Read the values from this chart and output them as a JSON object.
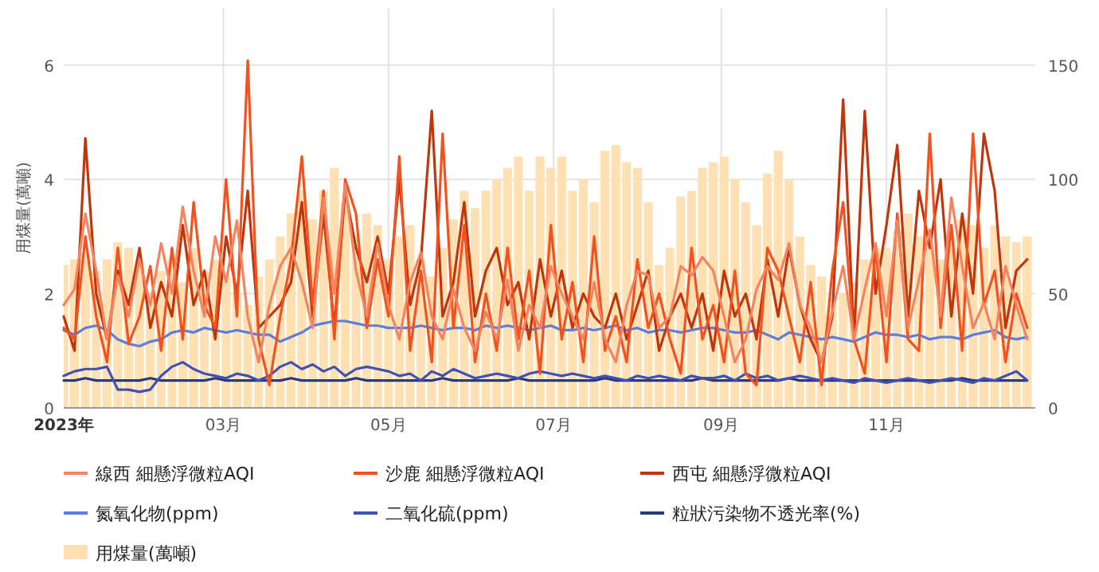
{
  "chart_data": {
    "type": "line",
    "ylabel": "用煤量(萬噸)",
    "grid": true,
    "legend": "bottom",
    "x": [
      "2023-01-01",
      "2023-01-05",
      "2023-01-09",
      "2023-01-13",
      "2023-01-17",
      "2023-01-21",
      "2023-01-25",
      "2023-01-29",
      "2023-02-02",
      "2023-02-06",
      "2023-02-10",
      "2023-02-14",
      "2023-02-18",
      "2023-02-22",
      "2023-02-26",
      "2023-03-02",
      "2023-03-06",
      "2023-03-10",
      "2023-03-14",
      "2023-03-18",
      "2023-03-22",
      "2023-03-26",
      "2023-03-30",
      "2023-04-03",
      "2023-04-07",
      "2023-04-11",
      "2023-04-15",
      "2023-04-19",
      "2023-04-23",
      "2023-04-27",
      "2023-05-01",
      "2023-05-05",
      "2023-05-09",
      "2023-05-13",
      "2023-05-17",
      "2023-05-21",
      "2023-05-25",
      "2023-05-29",
      "2023-06-02",
      "2023-06-06",
      "2023-06-10",
      "2023-06-14",
      "2023-06-18",
      "2023-06-22",
      "2023-06-26",
      "2023-06-30",
      "2023-07-04",
      "2023-07-08",
      "2023-07-12",
      "2023-07-16",
      "2023-07-20",
      "2023-07-24",
      "2023-07-28",
      "2023-08-01",
      "2023-08-05",
      "2023-08-09",
      "2023-08-13",
      "2023-08-17",
      "2023-08-21",
      "2023-08-25",
      "2023-08-29",
      "2023-09-02",
      "2023-09-06",
      "2023-09-10",
      "2023-09-14",
      "2023-09-18",
      "2023-09-22",
      "2023-09-26",
      "2023-09-30",
      "2023-10-04",
      "2023-10-08",
      "2023-10-12",
      "2023-10-16",
      "2023-10-20",
      "2023-10-24",
      "2023-10-28",
      "2023-11-01",
      "2023-11-05",
      "2023-11-09",
      "2023-11-13",
      "2023-11-17",
      "2023-11-21",
      "2023-11-25",
      "2023-11-29",
      "2023-12-03",
      "2023-12-07",
      "2023-12-11",
      "2023-12-15",
      "2023-12-19",
      "2023-12-23"
    ],
    "xlim": [
      "2023-01-01",
      "2023-12-26"
    ],
    "xticks": [
      {
        "value": "2023-01-01",
        "label": "2023年"
      },
      {
        "value": "2023-03-01",
        "label": "03月"
      },
      {
        "value": "2023-05-01",
        "label": "05月"
      },
      {
        "value": "2023-07-01",
        "label": "07月"
      },
      {
        "value": "2023-09-01",
        "label": "09月"
      },
      {
        "value": "2023-11-01",
        "label": "11月"
      }
    ],
    "ylim": [
      0,
      7
    ],
    "yticks": [
      0,
      2,
      4,
      6
    ],
    "y2lim": [
      0,
      175
    ],
    "y2ticks": [
      0,
      50,
      100,
      150
    ],
    "series": [
      {
        "name": "線西 細懸浮微粒AQI",
        "color": "#f4845f",
        "axis": "y2",
        "values": [
          45,
          52,
          85,
          60,
          30,
          58,
          40,
          65,
          45,
          72,
          50,
          88,
          60,
          40,
          75,
          55,
          82,
          40,
          20,
          45,
          62,
          70,
          55,
          35,
          92,
          50,
          98,
          60,
          40,
          72,
          45,
          30,
          55,
          68,
          40,
          30,
          52,
          35,
          25,
          42,
          30,
          56,
          25,
          45,
          35,
          62,
          50,
          40,
          30,
          55,
          30,
          20,
          45,
          60,
          58,
          35,
          40,
          62,
          58,
          66,
          60,
          40,
          20,
          30,
          52,
          62,
          56,
          72,
          45,
          35,
          20,
          42,
          62,
          30,
          52,
          72,
          40,
          82,
          35,
          56,
          78,
          40,
          92,
          62,
          35,
          46,
          30,
          62,
          45,
          30
        ]
      },
      {
        "name": "沙鹿 細懸浮微粒AQI",
        "color": "#f4511e",
        "axis": "y2",
        "values": [
          35,
          30,
          75,
          40,
          20,
          70,
          28,
          40,
          62,
          25,
          70,
          30,
          90,
          45,
          35,
          100,
          40,
          152,
          30,
          10,
          40,
          65,
          110,
          45,
          95,
          30,
          100,
          85,
          35,
          65,
          40,
          110,
          25,
          60,
          20,
          120,
          35,
          80,
          20,
          50,
          25,
          70,
          30,
          60,
          15,
          80,
          30,
          55,
          20,
          75,
          25,
          40,
          20,
          65,
          35,
          50,
          30,
          15,
          70,
          30,
          45,
          20,
          60,
          15,
          10,
          70,
          60,
          40,
          20,
          55,
          10,
          60,
          90,
          30,
          15,
          70,
          20,
          85,
          30,
          25,
          120,
          35,
          80,
          25,
          120,
          45,
          60,
          20,
          50,
          35
        ]
      },
      {
        "name": "西屯 細懸浮微粒AQI",
        "color": "#bf360c",
        "axis": "y2",
        "values": [
          40,
          25,
          118,
          50,
          30,
          60,
          45,
          70,
          35,
          55,
          40,
          80,
          45,
          60,
          30,
          75,
          50,
          95,
          35,
          40,
          45,
          55,
          90,
          40,
          85,
          35,
          95,
          70,
          55,
          75,
          50,
          100,
          45,
          65,
          130,
          40,
          55,
          90,
          40,
          60,
          70,
          45,
          55,
          30,
          65,
          40,
          60,
          35,
          50,
          40,
          35,
          50,
          30,
          45,
          60,
          25,
          40,
          50,
          35,
          50,
          25,
          60,
          40,
          50,
          30,
          65,
          40,
          70,
          45,
          30,
          20,
          40,
          135,
          30,
          130,
          50,
          80,
          115,
          40,
          95,
          70,
          100,
          40,
          85,
          50,
          120,
          95,
          35,
          60,
          65
        ]
      },
      {
        "name": "氮氧化物(ppm)",
        "color": "#5b7fe0",
        "axis": "y2",
        "values": [
          34,
          32,
          35,
          36,
          34,
          30,
          28,
          27,
          29,
          30,
          33,
          34,
          33,
          35,
          34,
          33,
          34,
          33,
          32,
          32,
          29,
          31,
          33,
          36,
          37,
          38,
          38,
          37,
          36,
          36,
          35,
          35,
          35,
          36,
          35,
          34,
          35,
          35,
          34,
          36,
          35,
          36,
          35,
          34,
          35,
          36,
          34,
          34,
          35,
          34,
          35,
          36,
          34,
          35,
          33,
          34,
          34,
          33,
          34,
          35,
          35,
          34,
          33,
          33,
          34,
          32,
          30,
          33,
          32,
          31,
          30,
          31,
          30,
          29,
          31,
          33,
          32,
          32,
          31,
          32,
          30,
          31,
          31,
          30,
          32,
          33,
          34,
          31,
          30,
          31
        ]
      },
      {
        "name": "二氧化硫(ppm)",
        "color": "#3f51b5",
        "axis": "y2",
        "values": [
          14,
          16,
          17,
          17,
          18,
          8,
          8,
          7,
          8,
          14,
          18,
          20,
          17,
          15,
          14,
          13,
          15,
          14,
          12,
          14,
          18,
          20,
          17,
          19,
          16,
          18,
          14,
          17,
          18,
          17,
          16,
          14,
          15,
          12,
          16,
          14,
          17,
          15,
          13,
          14,
          15,
          14,
          13,
          15,
          16,
          15,
          14,
          15,
          14,
          13,
          14,
          13,
          12,
          14,
          13,
          14,
          13,
          12,
          14,
          13,
          13,
          14,
          12,
          15,
          13,
          14,
          12,
          13,
          14,
          13,
          12,
          13,
          12,
          11,
          13,
          12,
          11,
          12,
          13,
          12,
          11,
          12,
          13,
          12,
          11,
          13,
          12,
          14,
          16,
          12
        ]
      },
      {
        "name": "粒狀污染物不透光率(%)",
        "color": "#283a7a",
        "axis": "y2",
        "values": [
          12,
          12,
          13,
          12,
          12,
          12,
          12,
          12,
          13,
          12,
          12,
          12,
          12,
          12,
          13,
          12,
          12,
          12,
          12,
          12,
          12,
          13,
          12,
          12,
          12,
          12,
          12,
          13,
          12,
          12,
          12,
          12,
          12,
          12,
          12,
          13,
          12,
          12,
          12,
          12,
          12,
          12,
          13,
          12,
          12,
          12,
          12,
          12,
          12,
          12,
          13,
          12,
          12,
          12,
          12,
          12,
          12,
          12,
          12,
          13,
          12,
          12,
          12,
          12,
          12,
          12,
          12,
          13,
          12,
          12,
          12,
          12,
          12,
          12,
          12,
          12,
          12,
          12,
          12,
          12,
          12,
          12,
          12,
          13,
          12,
          12,
          12,
          12,
          12,
          12
        ]
      },
      {
        "name": "用煤量(萬噸)",
        "type": "bar",
        "color": "#ffe0b2",
        "values": [
          2.5,
          2.6,
          2.7,
          2.4,
          2.6,
          2.9,
          2.8,
          2.5,
          2.0,
          2.4,
          2.6,
          2.2,
          2.8,
          2.4,
          2.6,
          2.3,
          2.0,
          1.8,
          2.3,
          2.6,
          3.0,
          3.4,
          3.8,
          3.3,
          3.8,
          4.2,
          3.6,
          3.0,
          3.4,
          3.2,
          2.6,
          3.0,
          3.2,
          2.6,
          2.3,
          2.8,
          3.3,
          3.8,
          3.5,
          3.8,
          4.0,
          4.2,
          4.4,
          3.8,
          4.4,
          4.2,
          4.4,
          3.8,
          4.0,
          3.6,
          4.5,
          4.6,
          4.3,
          4.2,
          3.6,
          2.5,
          2.8,
          3.7,
          3.8,
          4.2,
          4.3,
          4.4,
          4.0,
          3.6,
          3.2,
          4.1,
          4.5,
          4.0,
          3.0,
          2.5,
          2.3,
          1.8,
          2.0,
          2.2,
          2.6,
          2.8,
          2.8,
          3.1,
          3.4,
          3.0,
          2.8,
          2.6,
          3.0,
          3.3,
          3.2,
          2.8,
          3.2,
          3.0,
          2.9,
          3.0
        ]
      }
    ]
  }
}
